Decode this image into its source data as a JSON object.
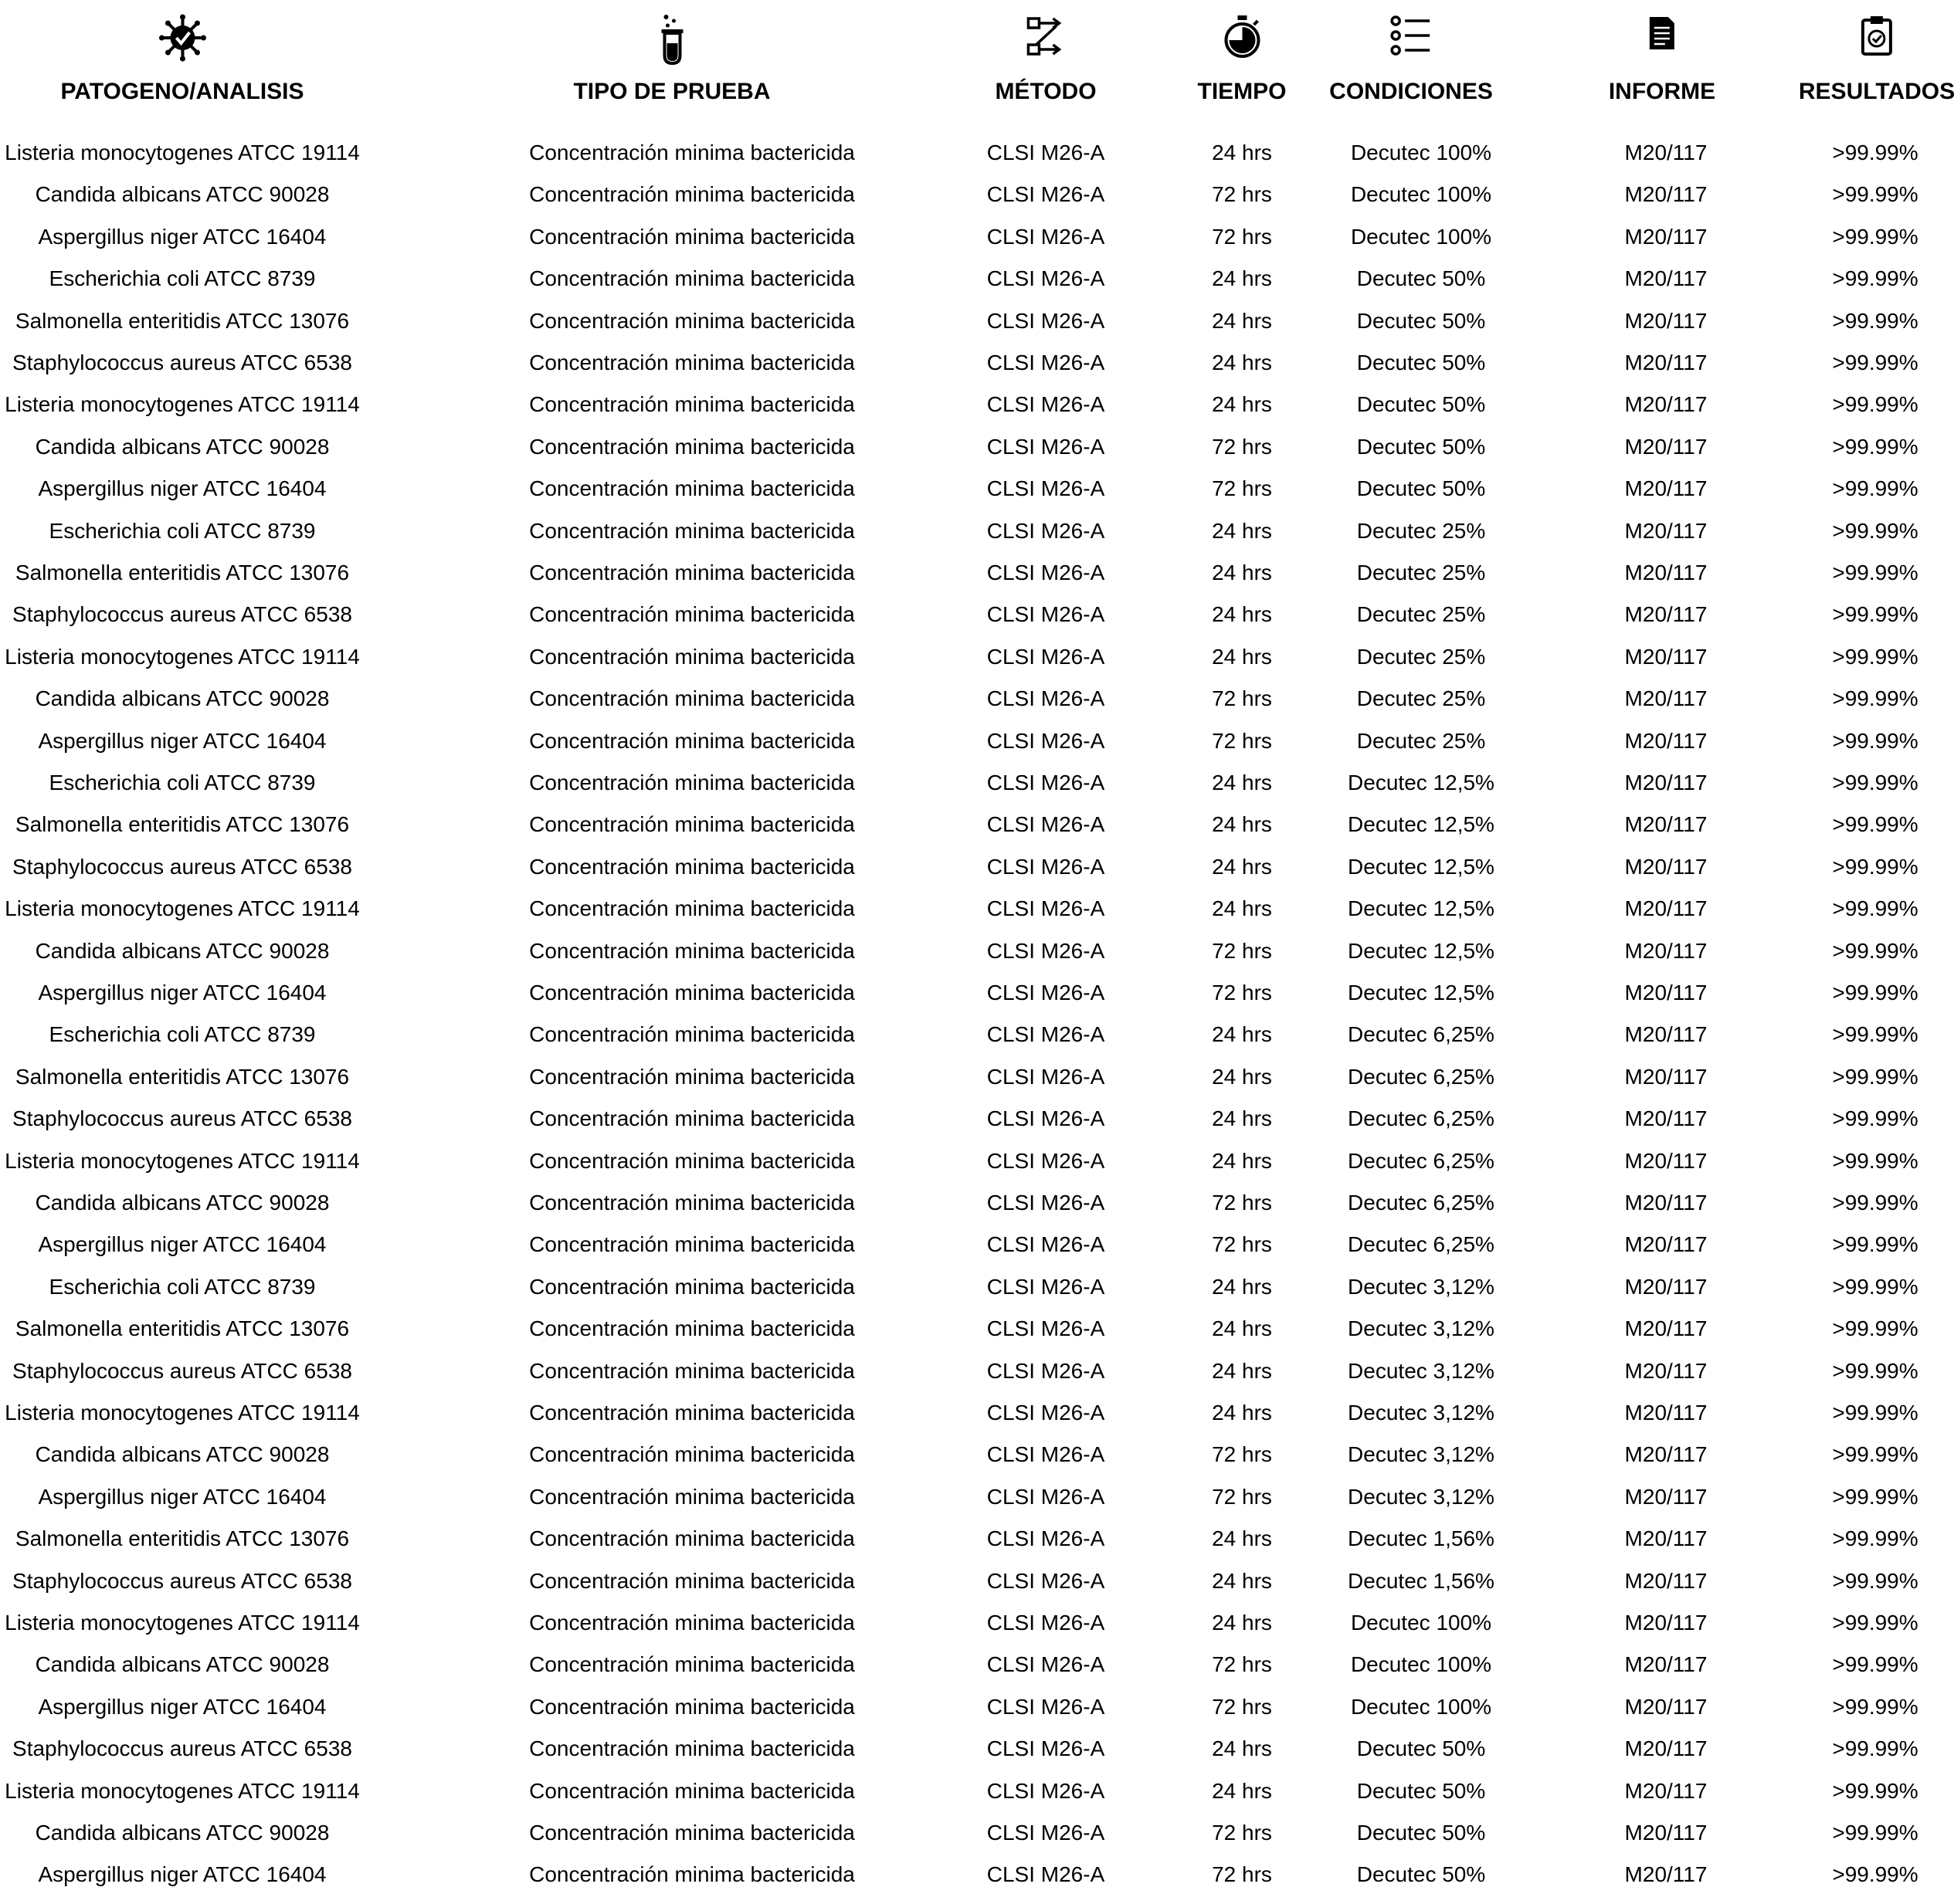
{
  "table": {
    "headers": [
      {
        "key": "patogeno",
        "label": "PATOGENO/ANALISIS",
        "icon": "virus-icon"
      },
      {
        "key": "tipo",
        "label": "TIPO DE PRUEBA",
        "icon": "test-tube-icon"
      },
      {
        "key": "metodo",
        "label": "MÉTODO",
        "icon": "workflow-icon"
      },
      {
        "key": "tiempo",
        "label": "TIEMPO",
        "icon": "timer-icon"
      },
      {
        "key": "condiciones",
        "label": "CONDICIONES",
        "icon": "checklist-icon"
      },
      {
        "key": "informe",
        "label": "INFORME",
        "icon": "document-icon"
      },
      {
        "key": "resultados",
        "label": "RESULTADOS",
        "icon": "clipboard-check-icon"
      }
    ],
    "rows": [
      [
        "Listeria monocytogenes ATCC 19114",
        "Concentración minima bactericida",
        "CLSI M26-A",
        "24 hrs",
        "Decutec 100%",
        "M20/117",
        ">99.99%"
      ],
      [
        "Candida albicans ATCC 90028",
        "Concentración minima bactericida",
        "CLSI M26-A",
        "72 hrs",
        "Decutec 100%",
        "M20/117",
        ">99.99%"
      ],
      [
        "Aspergillus niger ATCC 16404",
        "Concentración minima bactericida",
        "CLSI M26-A",
        "72 hrs",
        "Decutec 100%",
        "M20/117",
        ">99.99%"
      ],
      [
        "Escherichia coli ATCC 8739",
        "Concentración minima bactericida",
        "CLSI M26-A",
        "24 hrs",
        "Decutec 50%",
        "M20/117",
        ">99.99%"
      ],
      [
        "Salmonella enteritidis ATCC 13076",
        "Concentración minima bactericida",
        "CLSI M26-A",
        "24 hrs",
        "Decutec 50%",
        "M20/117",
        ">99.99%"
      ],
      [
        "Staphylococcus aureus ATCC 6538",
        "Concentración minima bactericida",
        "CLSI M26-A",
        "24 hrs",
        "Decutec 50%",
        "M20/117",
        ">99.99%"
      ],
      [
        "Listeria monocytogenes ATCC 19114",
        "Concentración minima bactericida",
        "CLSI M26-A",
        "24 hrs",
        "Decutec 50%",
        "M20/117",
        ">99.99%"
      ],
      [
        "Candida albicans ATCC 90028",
        "Concentración minima bactericida",
        "CLSI M26-A",
        "72 hrs",
        "Decutec 50%",
        "M20/117",
        ">99.99%"
      ],
      [
        "Aspergillus niger ATCC 16404",
        "Concentración minima bactericida",
        "CLSI M26-A",
        "72 hrs",
        "Decutec 50%",
        "M20/117",
        ">99.99%"
      ],
      [
        "Escherichia coli ATCC 8739",
        "Concentración minima bactericida",
        "CLSI M26-A",
        "24 hrs",
        "Decutec 25%",
        "M20/117",
        ">99.99%"
      ],
      [
        "Salmonella enteritidis ATCC 13076",
        "Concentración minima bactericida",
        "CLSI M26-A",
        "24 hrs",
        "Decutec 25%",
        "M20/117",
        ">99.99%"
      ],
      [
        "Staphylococcus aureus ATCC 6538",
        "Concentración minima bactericida",
        "CLSI M26-A",
        "24 hrs",
        "Decutec 25%",
        "M20/117",
        ">99.99%"
      ],
      [
        "Listeria monocytogenes ATCC 19114",
        "Concentración minima bactericida",
        "CLSI M26-A",
        "24 hrs",
        "Decutec 25%",
        "M20/117",
        ">99.99%"
      ],
      [
        "Candida albicans ATCC 90028",
        "Concentración minima bactericida",
        "CLSI M26-A",
        "72 hrs",
        "Decutec 25%",
        "M20/117",
        ">99.99%"
      ],
      [
        "Aspergillus niger ATCC 16404",
        "Concentración minima bactericida",
        "CLSI M26-A",
        "72 hrs",
        "Decutec 25%",
        "M20/117",
        ">99.99%"
      ],
      [
        "Escherichia coli ATCC 8739",
        "Concentración minima bactericida",
        "CLSI M26-A",
        "24 hrs",
        "Decutec 12,5%",
        "M20/117",
        ">99.99%"
      ],
      [
        "Salmonella enteritidis ATCC 13076",
        "Concentración minima bactericida",
        "CLSI M26-A",
        "24 hrs",
        "Decutec 12,5%",
        "M20/117",
        ">99.99%"
      ],
      [
        "Staphylococcus aureus ATCC 6538",
        "Concentración minima bactericida",
        "CLSI M26-A",
        "24 hrs",
        "Decutec 12,5%",
        "M20/117",
        ">99.99%"
      ],
      [
        "Listeria monocytogenes ATCC 19114",
        "Concentración minima bactericida",
        "CLSI M26-A",
        "24 hrs",
        "Decutec 12,5%",
        "M20/117",
        ">99.99%"
      ],
      [
        "Candida albicans ATCC 90028",
        "Concentración minima bactericida",
        "CLSI M26-A",
        "72 hrs",
        "Decutec 12,5%",
        "M20/117",
        ">99.99%"
      ],
      [
        "Aspergillus niger ATCC 16404",
        "Concentración minima bactericida",
        "CLSI M26-A",
        "72 hrs",
        "Decutec 12,5%",
        "M20/117",
        ">99.99%"
      ],
      [
        "Escherichia coli ATCC 8739",
        "Concentración minima bactericida",
        "CLSI M26-A",
        "24 hrs",
        "Decutec 6,25%",
        "M20/117",
        ">99.99%"
      ],
      [
        "Salmonella enteritidis ATCC 13076",
        "Concentración minima bactericida",
        "CLSI M26-A",
        "24 hrs",
        "Decutec 6,25%",
        "M20/117",
        ">99.99%"
      ],
      [
        "Staphylococcus aureus ATCC 6538",
        "Concentración minima bactericida",
        "CLSI M26-A",
        "24 hrs",
        "Decutec 6,25%",
        "M20/117",
        ">99.99%"
      ],
      [
        "Listeria monocytogenes ATCC 19114",
        "Concentración minima bactericida",
        "CLSI M26-A",
        "24 hrs",
        "Decutec 6,25%",
        "M20/117",
        ">99.99%"
      ],
      [
        "Candida albicans ATCC 90028",
        "Concentración minima bactericida",
        "CLSI M26-A",
        "72 hrs",
        "Decutec 6,25%",
        "M20/117",
        ">99.99%"
      ],
      [
        "Aspergillus niger ATCC 16404",
        "Concentración minima bactericida",
        "CLSI M26-A",
        "72 hrs",
        "Decutec 6,25%",
        "M20/117",
        ">99.99%"
      ],
      [
        "Escherichia coli ATCC 8739",
        "Concentración minima bactericida",
        "CLSI M26-A",
        "24 hrs",
        "Decutec 3,12%",
        "M20/117",
        ">99.99%"
      ],
      [
        "Salmonella enteritidis ATCC 13076",
        "Concentración minima bactericida",
        "CLSI M26-A",
        "24 hrs",
        "Decutec 3,12%",
        "M20/117",
        ">99.99%"
      ],
      [
        "Staphylococcus aureus ATCC 6538",
        "Concentración minima bactericida",
        "CLSI M26-A",
        "24 hrs",
        "Decutec 3,12%",
        "M20/117",
        ">99.99%"
      ],
      [
        "Listeria monocytogenes ATCC 19114",
        "Concentración minima bactericida",
        "CLSI M26-A",
        "24 hrs",
        "Decutec 3,12%",
        "M20/117",
        ">99.99%"
      ],
      [
        "Candida albicans ATCC 90028",
        "Concentración minima bactericida",
        "CLSI M26-A",
        "72 hrs",
        "Decutec 3,12%",
        "M20/117",
        ">99.99%"
      ],
      [
        "Aspergillus niger ATCC 16404",
        "Concentración minima bactericida",
        "CLSI M26-A",
        "72 hrs",
        "Decutec 3,12%",
        "M20/117",
        ">99.99%"
      ],
      [
        "Salmonella enteritidis ATCC 13076",
        "Concentración minima bactericida",
        "CLSI M26-A",
        "24 hrs",
        "Decutec 1,56%",
        "M20/117",
        ">99.99%"
      ],
      [
        "Staphylococcus aureus ATCC 6538",
        "Concentración minima bactericida",
        "CLSI M26-A",
        "24 hrs",
        "Decutec 1,56%",
        "M20/117",
        ">99.99%"
      ],
      [
        "Listeria monocytogenes ATCC 19114",
        "Concentración minima bactericida",
        "CLSI M26-A",
        "24 hrs",
        "Decutec 100%",
        "M20/117",
        ">99.99%"
      ],
      [
        "Candida albicans ATCC 90028",
        "Concentración minima bactericida",
        "CLSI M26-A",
        "72 hrs",
        "Decutec 100%",
        "M20/117",
        ">99.99%"
      ],
      [
        "Aspergillus niger ATCC 16404",
        "Concentración minima bactericida",
        "CLSI M26-A",
        "72 hrs",
        "Decutec 100%",
        "M20/117",
        ">99.99%"
      ],
      [
        "Staphylococcus aureus ATCC 6538",
        "Concentración minima bactericida",
        "CLSI M26-A",
        "24 hrs",
        "Decutec 50%",
        "M20/117",
        ">99.99%"
      ],
      [
        "Listeria monocytogenes ATCC 19114",
        "Concentración minima bactericida",
        "CLSI M26-A",
        "24 hrs",
        "Decutec 50%",
        "M20/117",
        ">99.99%"
      ],
      [
        "Candida albicans ATCC 90028",
        "Concentración minima bactericida",
        "CLSI M26-A",
        "72 hrs",
        "Decutec 50%",
        "M20/117",
        ">99.99%"
      ],
      [
        "Aspergillus niger ATCC 16404",
        "Concentración minima bactericida",
        "CLSI M26-A",
        "72 hrs",
        "Decutec 50%",
        "M20/117",
        ">99.99%"
      ]
    ]
  }
}
